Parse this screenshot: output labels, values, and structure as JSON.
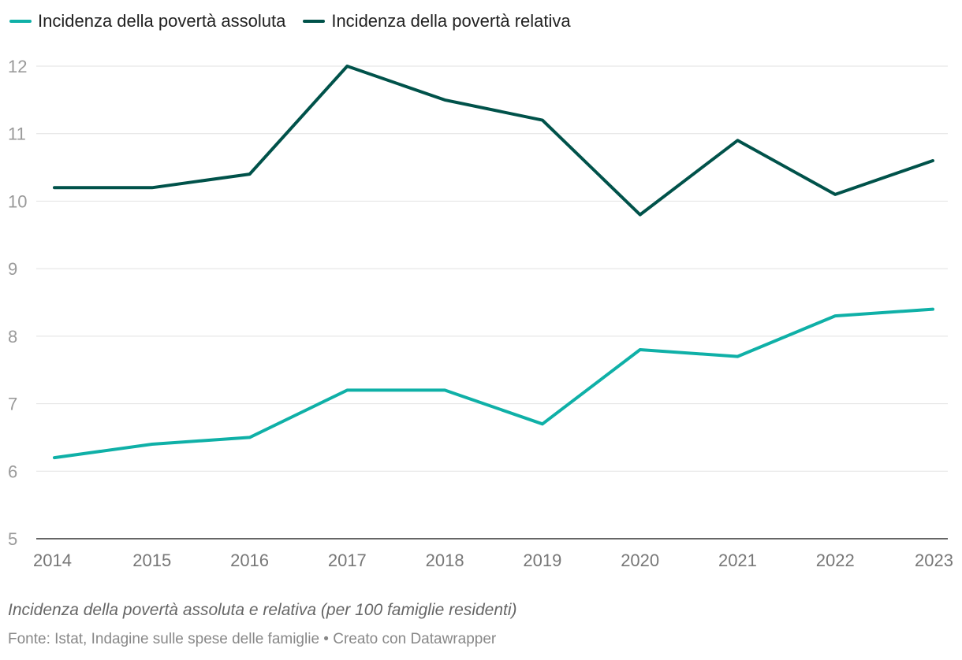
{
  "chart_data": {
    "type": "line",
    "x": [
      "2014",
      "2015",
      "2016",
      "2017",
      "2018",
      "2019",
      "2020",
      "2021",
      "2022",
      "2023"
    ],
    "series": [
      {
        "name": "Incidenza della povertà assoluta",
        "color": "#0fb0a7",
        "values": [
          6.2,
          6.4,
          6.5,
          7.2,
          7.2,
          6.7,
          7.8,
          7.7,
          8.3,
          8.4
        ]
      },
      {
        "name": "Incidenza della povertà relativa",
        "color": "#00524a",
        "values": [
          10.2,
          10.2,
          10.4,
          12.0,
          11.5,
          11.2,
          9.8,
          10.9,
          10.1,
          10.6
        ]
      }
    ],
    "ylim": [
      5,
      12
    ],
    "yticks": [
      "5",
      "6",
      "7",
      "8",
      "9",
      "10",
      "11",
      "12"
    ],
    "title": "Incidenza della povertà assoluta e relativa (per 100 famiglie residenti)",
    "xlabel": "",
    "ylabel": "",
    "grid": true,
    "legend": "top-left"
  },
  "caption": "Incidenza della povertà assoluta e relativa (per 100 famiglie residenti)",
  "source": "Fonte: Istat, Indagine sulle spese delle famiglie • Creato con Datawrapper"
}
